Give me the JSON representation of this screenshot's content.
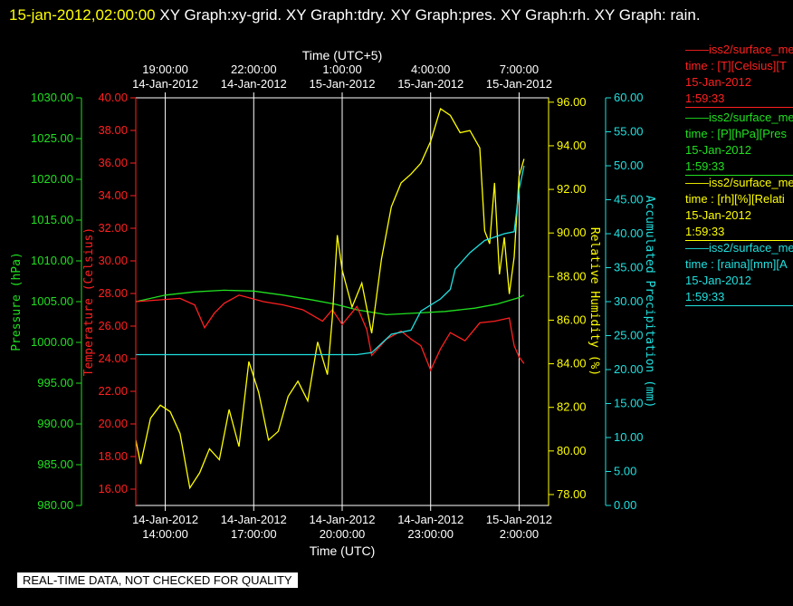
{
  "header": {
    "timestamp": "15-jan-2012,02:00:00",
    "title_rest": " XY Graph:xy-grid.  XY Graph:tdry.  XY Graph:pres.  XY Graph:rh.  XY Graph: rain."
  },
  "legend": [
    {
      "line1": "——iss2/surface_me",
      "line2": "time : [T][Celsius][T",
      "line3": "15-Jan-2012",
      "line4": "1:59:33",
      "color": "#ff2020"
    },
    {
      "line1": "——iss2/surface_me",
      "line2": "time : [P][hPa][Pres",
      "line3": "15-Jan-2012",
      "line4": "1:59:33",
      "color": "#20e020"
    },
    {
      "line1": "——iss2/surface_me",
      "line2": "time : [rh][%][Relati",
      "line3": "15-Jan-2012",
      "line4": "1:59:33",
      "color": "#ffff00"
    },
    {
      "line1": "——iss2/surface_me",
      "line2": "time : [raina][mm][A",
      "line3": "15-Jan-2012",
      "line4": "1:59:33",
      "color": "#20e0e0"
    }
  ],
  "notice": "REAL-TIME DATA, NOT CHECKED FOR QUALITY",
  "chart_data": {
    "type": "line",
    "colors": {
      "temperature": "#ff2020",
      "pressure": "#20e020",
      "humidity": "#ffff00",
      "precip": "#20e0e0",
      "grid": "#ffffff"
    },
    "x_bottom": {
      "label": "Time (UTC)",
      "range": [
        "2012-01-14 13:00",
        "2012-01-15 03:00"
      ],
      "ticks": [
        {
          "time": "2012-01-14 14:00",
          "line1": "14-Jan-2012",
          "line2": "14:00:00"
        },
        {
          "time": "2012-01-14 17:00",
          "line1": "14-Jan-2012",
          "line2": "17:00:00"
        },
        {
          "time": "2012-01-14 20:00",
          "line1": "14-Jan-2012",
          "line2": "20:00:00"
        },
        {
          "time": "2012-01-14 23:00",
          "line1": "14-Jan-2012",
          "line2": "23:00:00"
        },
        {
          "time": "2012-01-15 02:00",
          "line1": "15-Jan-2012",
          "line2": "2:00:00"
        }
      ]
    },
    "x_top": {
      "label": "Time (UTC+5)",
      "ticks": [
        {
          "time": "2012-01-14 14:00",
          "line1": "19:00:00",
          "line2": "14-Jan-2012"
        },
        {
          "time": "2012-01-14 17:00",
          "line1": "22:00:00",
          "line2": "14-Jan-2012"
        },
        {
          "time": "2012-01-14 20:00",
          "line1": "1:00:00",
          "line2": "15-Jan-2012"
        },
        {
          "time": "2012-01-14 23:00",
          "line1": "4:00:00",
          "line2": "15-Jan-2012"
        },
        {
          "time": "2012-01-15 02:00",
          "line1": "7:00:00",
          "line2": "15-Jan-2012"
        }
      ]
    },
    "axes": {
      "pressure": {
        "label": "Pressure (hPa)",
        "range": [
          980,
          1030
        ],
        "ticks": [
          "980.00",
          "985.00",
          "990.00",
          "995.00",
          "1000.00",
          "1005.00",
          "1010.00",
          "1015.00",
          "1020.00",
          "1025.00",
          "1030.00"
        ]
      },
      "temperature": {
        "label": "Temperature (Celsius)",
        "range": [
          15,
          40
        ],
        "ticks": [
          "16.00",
          "18.00",
          "20.00",
          "22.00",
          "24.00",
          "26.00",
          "28.00",
          "30.00",
          "32.00",
          "34.00",
          "36.00",
          "38.00",
          "40.00"
        ]
      },
      "humidity": {
        "label": "Relative Humidity (%)",
        "range": [
          77.5,
          96.2
        ],
        "ticks": [
          "78.00",
          "80.00",
          "82.00",
          "84.00",
          "86.00",
          "88.00",
          "90.00",
          "92.00",
          "94.00",
          "96.00"
        ]
      },
      "precip": {
        "label": "Accumulated Precipitation (mm)",
        "range": [
          0,
          60
        ],
        "ticks": [
          "0.00",
          "5.00",
          "10.00",
          "15.00",
          "20.00",
          "25.00",
          "30.00",
          "35.00",
          "40.00",
          "45.00",
          "50.00",
          "55.00",
          "60.00"
        ]
      }
    },
    "series": [
      {
        "name": "Pressure",
        "axis": "pressure",
        "points": [
          [
            "2012-01-14 13:00",
            1005.0
          ],
          [
            "2012-01-14 14:00",
            1005.8
          ],
          [
            "2012-01-14 15:00",
            1006.2
          ],
          [
            "2012-01-14 16:00",
            1006.4
          ],
          [
            "2012-01-14 17:00",
            1006.3
          ],
          [
            "2012-01-14 18:00",
            1005.8
          ],
          [
            "2012-01-14 19:00",
            1005.2
          ],
          [
            "2012-01-14 19:45",
            1004.7
          ],
          [
            "2012-01-14 20:30",
            1004.0
          ],
          [
            "2012-01-14 21:30",
            1003.4
          ],
          [
            "2012-01-14 22:30",
            1003.6
          ],
          [
            "2012-01-14 23:30",
            1003.8
          ],
          [
            "2012-01-15 00:30",
            1004.2
          ],
          [
            "2012-01-15 01:15",
            1004.7
          ],
          [
            "2012-01-15 02:00",
            1005.5
          ],
          [
            "2012-01-15 02:10",
            1005.8
          ]
        ]
      },
      {
        "name": "Temperature",
        "axis": "temperature",
        "points": [
          [
            "2012-01-14 13:00",
            27.5
          ],
          [
            "2012-01-14 14:30",
            27.7
          ],
          [
            "2012-01-14 15:00",
            27.3
          ],
          [
            "2012-01-14 15:20",
            25.9
          ],
          [
            "2012-01-14 15:40",
            26.8
          ],
          [
            "2012-01-14 16:00",
            27.4
          ],
          [
            "2012-01-14 16:30",
            27.9
          ],
          [
            "2012-01-14 17:20",
            27.5
          ],
          [
            "2012-01-14 18:00",
            27.3
          ],
          [
            "2012-01-14 18:40",
            27.0
          ],
          [
            "2012-01-14 19:20",
            26.3
          ],
          [
            "2012-01-14 19:40",
            27.0
          ],
          [
            "2012-01-14 20:00",
            26.1
          ],
          [
            "2012-01-14 20:30",
            27.2
          ],
          [
            "2012-01-14 20:50",
            25.8
          ],
          [
            "2012-01-14 21:00",
            24.2
          ],
          [
            "2012-01-14 21:30",
            25.2
          ],
          [
            "2012-01-14 22:00",
            25.7
          ],
          [
            "2012-01-14 22:20",
            25.2
          ],
          [
            "2012-01-14 22:40",
            24.8
          ],
          [
            "2012-01-14 23:00",
            23.3
          ],
          [
            "2012-01-14 23:20",
            24.6
          ],
          [
            "2012-01-14 23:40",
            25.6
          ],
          [
            "2012-01-15 00:10",
            25.1
          ],
          [
            "2012-01-15 00:40",
            26.2
          ],
          [
            "2012-01-15 01:10",
            26.3
          ],
          [
            "2012-01-15 01:40",
            26.5
          ],
          [
            "2012-01-15 01:50",
            24.8
          ],
          [
            "2012-01-15 02:00",
            24.1
          ],
          [
            "2012-01-15 02:10",
            23.7
          ]
        ]
      },
      {
        "name": "Relative Humidity",
        "axis": "humidity",
        "points": [
          [
            "2012-01-14 13:00",
            80.5
          ],
          [
            "2012-01-14 13:10",
            79.4
          ],
          [
            "2012-01-14 13:30",
            81.5
          ],
          [
            "2012-01-14 13:50",
            82.1
          ],
          [
            "2012-01-14 14:10",
            81.8
          ],
          [
            "2012-01-14 14:30",
            80.8
          ],
          [
            "2012-01-14 14:50",
            78.3
          ],
          [
            "2012-01-14 15:10",
            79.0
          ],
          [
            "2012-01-14 15:30",
            80.1
          ],
          [
            "2012-01-14 15:50",
            79.6
          ],
          [
            "2012-01-14 16:10",
            81.9
          ],
          [
            "2012-01-14 16:30",
            80.2
          ],
          [
            "2012-01-14 16:50",
            84.1
          ],
          [
            "2012-01-14 17:10",
            82.7
          ],
          [
            "2012-01-14 17:30",
            80.5
          ],
          [
            "2012-01-14 17:50",
            80.9
          ],
          [
            "2012-01-14 18:10",
            82.5
          ],
          [
            "2012-01-14 18:30",
            83.2
          ],
          [
            "2012-01-14 18:50",
            82.3
          ],
          [
            "2012-01-14 19:10",
            85.0
          ],
          [
            "2012-01-14 19:30",
            83.5
          ],
          [
            "2012-01-14 19:40",
            86.1
          ],
          [
            "2012-01-14 19:50",
            89.9
          ],
          [
            "2012-01-14 20:00",
            88.3
          ],
          [
            "2012-01-14 20:20",
            86.6
          ],
          [
            "2012-01-14 20:40",
            87.7
          ],
          [
            "2012-01-14 21:00",
            85.4
          ],
          [
            "2012-01-14 21:20",
            88.8
          ],
          [
            "2012-01-14 21:40",
            91.2
          ],
          [
            "2012-01-14 22:00",
            92.3
          ],
          [
            "2012-01-14 22:20",
            92.7
          ],
          [
            "2012-01-14 22:40",
            93.2
          ],
          [
            "2012-01-14 23:00",
            94.2
          ],
          [
            "2012-01-14 23:20",
            95.7
          ],
          [
            "2012-01-14 23:40",
            95.4
          ],
          [
            "2012-01-15 00:00",
            94.6
          ],
          [
            "2012-01-15 00:20",
            94.7
          ],
          [
            "2012-01-15 00:40",
            93.9
          ],
          [
            "2012-01-15 00:50",
            90.1
          ],
          [
            "2012-01-15 01:00",
            89.5
          ],
          [
            "2012-01-15 01:10",
            92.3
          ],
          [
            "2012-01-15 01:20",
            88.1
          ],
          [
            "2012-01-15 01:30",
            89.8
          ],
          [
            "2012-01-15 01:40",
            87.2
          ],
          [
            "2012-01-15 01:50",
            88.9
          ],
          [
            "2012-01-15 02:00",
            92.6
          ],
          [
            "2012-01-15 02:10",
            93.4
          ]
        ]
      },
      {
        "name": "Accumulated Precipitation",
        "axis": "precip",
        "points": [
          [
            "2012-01-14 13:00",
            22.2
          ],
          [
            "2012-01-14 19:45",
            22.2
          ],
          [
            "2012-01-14 20:30",
            22.2
          ],
          [
            "2012-01-14 21:00",
            22.5
          ],
          [
            "2012-01-14 21:40",
            25.2
          ],
          [
            "2012-01-14 22:20",
            25.8
          ],
          [
            "2012-01-14 22:40",
            28.6
          ],
          [
            "2012-01-14 23:20",
            30.4
          ],
          [
            "2012-01-14 23:40",
            31.8
          ],
          [
            "2012-01-14 23:50",
            34.8
          ],
          [
            "2012-01-15 00:20",
            37.2
          ],
          [
            "2012-01-15 00:50",
            39.0
          ],
          [
            "2012-01-15 01:30",
            40.0
          ],
          [
            "2012-01-15 01:50",
            40.3
          ],
          [
            "2012-01-15 02:00",
            46.5
          ],
          [
            "2012-01-15 02:10",
            50.0
          ]
        ]
      }
    ]
  }
}
